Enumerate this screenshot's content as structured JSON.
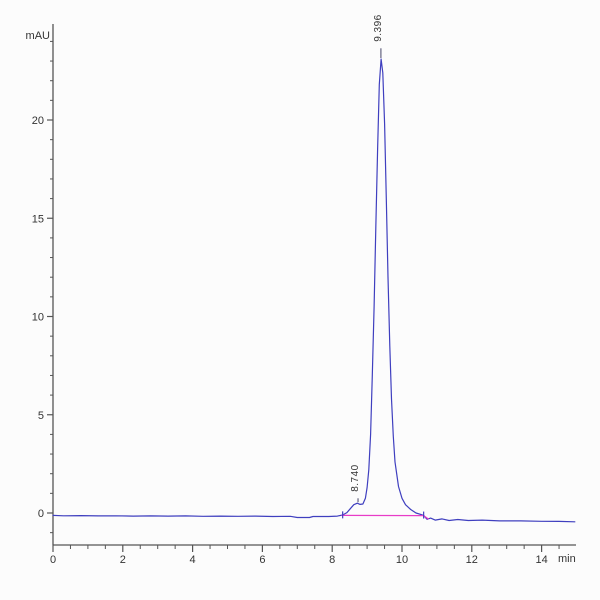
{
  "chart_data": {
    "type": "line",
    "title": "",
    "description": "HPLC chromatogram with one major peak at 9.396 min and a small shoulder peak at 8.740 min",
    "x_axis": {
      "unit_label": "min",
      "min": 0,
      "max": 15.0,
      "major_ticks": [
        0,
        2,
        4,
        6,
        8,
        10,
        12,
        14
      ],
      "minor_step": 0.5
    },
    "y_axis": {
      "unit_label": "mAU",
      "min": -1.6,
      "max": 25.0,
      "major_ticks": [
        0,
        5,
        10,
        15,
        20
      ],
      "minor_step": 1
    },
    "grid": false,
    "legend": "none",
    "colors": {
      "signal": "#3f3fbf",
      "baseline": "#e83cc8",
      "axis": "#555555",
      "text": "#333333"
    },
    "series": [
      {
        "name": "detector-signal",
        "color": "#3f3fbf",
        "points": [
          [
            0.0,
            -0.12
          ],
          [
            0.3,
            -0.14
          ],
          [
            0.8,
            -0.13
          ],
          [
            1.3,
            -0.15
          ],
          [
            1.8,
            -0.14
          ],
          [
            2.3,
            -0.16
          ],
          [
            2.8,
            -0.15
          ],
          [
            3.3,
            -0.16
          ],
          [
            3.8,
            -0.15
          ],
          [
            4.3,
            -0.17
          ],
          [
            4.8,
            -0.16
          ],
          [
            5.3,
            -0.17
          ],
          [
            5.8,
            -0.16
          ],
          [
            6.3,
            -0.18
          ],
          [
            6.8,
            -0.17
          ],
          [
            7.0,
            -0.23
          ],
          [
            7.35,
            -0.23
          ],
          [
            7.45,
            -0.18
          ],
          [
            7.9,
            -0.18
          ],
          [
            8.15,
            -0.16
          ],
          [
            8.3,
            -0.1
          ],
          [
            8.42,
            0.02
          ],
          [
            8.52,
            0.22
          ],
          [
            8.62,
            0.42
          ],
          [
            8.72,
            0.5
          ],
          [
            8.8,
            0.44
          ],
          [
            8.88,
            0.46
          ],
          [
            8.95,
            0.75
          ],
          [
            9.0,
            1.3
          ],
          [
            9.05,
            2.2
          ],
          [
            9.1,
            4.0
          ],
          [
            9.15,
            7.0
          ],
          [
            9.2,
            10.5
          ],
          [
            9.25,
            14.5
          ],
          [
            9.3,
            18.5
          ],
          [
            9.35,
            21.8
          ],
          [
            9.4,
            23.1
          ],
          [
            9.45,
            22.4
          ],
          [
            9.5,
            19.8
          ],
          [
            9.55,
            16.0
          ],
          [
            9.6,
            12.0
          ],
          [
            9.65,
            8.5
          ],
          [
            9.7,
            5.8
          ],
          [
            9.75,
            3.9
          ],
          [
            9.8,
            2.6
          ],
          [
            9.9,
            1.35
          ],
          [
            10.0,
            0.75
          ],
          [
            10.1,
            0.42
          ],
          [
            10.25,
            0.18
          ],
          [
            10.4,
            0.0
          ],
          [
            10.55,
            -0.08
          ],
          [
            10.62,
            -0.12
          ],
          [
            10.72,
            -0.32
          ],
          [
            10.82,
            -0.26
          ],
          [
            10.95,
            -0.36
          ],
          [
            11.15,
            -0.3
          ],
          [
            11.35,
            -0.38
          ],
          [
            11.6,
            -0.33
          ],
          [
            11.9,
            -0.38
          ],
          [
            12.3,
            -0.36
          ],
          [
            12.8,
            -0.4
          ],
          [
            13.4,
            -0.4
          ],
          [
            14.0,
            -0.42
          ],
          [
            14.5,
            -0.43
          ],
          [
            14.95,
            -0.45
          ]
        ]
      },
      {
        "name": "integration-baseline",
        "color": "#e83cc8",
        "points": [
          [
            8.28,
            -0.12
          ],
          [
            10.62,
            -0.13
          ],
          [
            10.75,
            -0.3
          ]
        ]
      }
    ],
    "peaks": [
      {
        "label": "8.740",
        "time": 8.74,
        "apex_mau": 0.5,
        "label_start_mau": 0.8
      },
      {
        "label": "9.396",
        "time": 9.396,
        "apex_mau": 23.1,
        "label_start_mau": 23.7
      }
    ],
    "integration_marks": [
      {
        "time": 8.3,
        "mau": -0.12
      },
      {
        "time": 10.62,
        "mau": -0.13
      }
    ]
  }
}
